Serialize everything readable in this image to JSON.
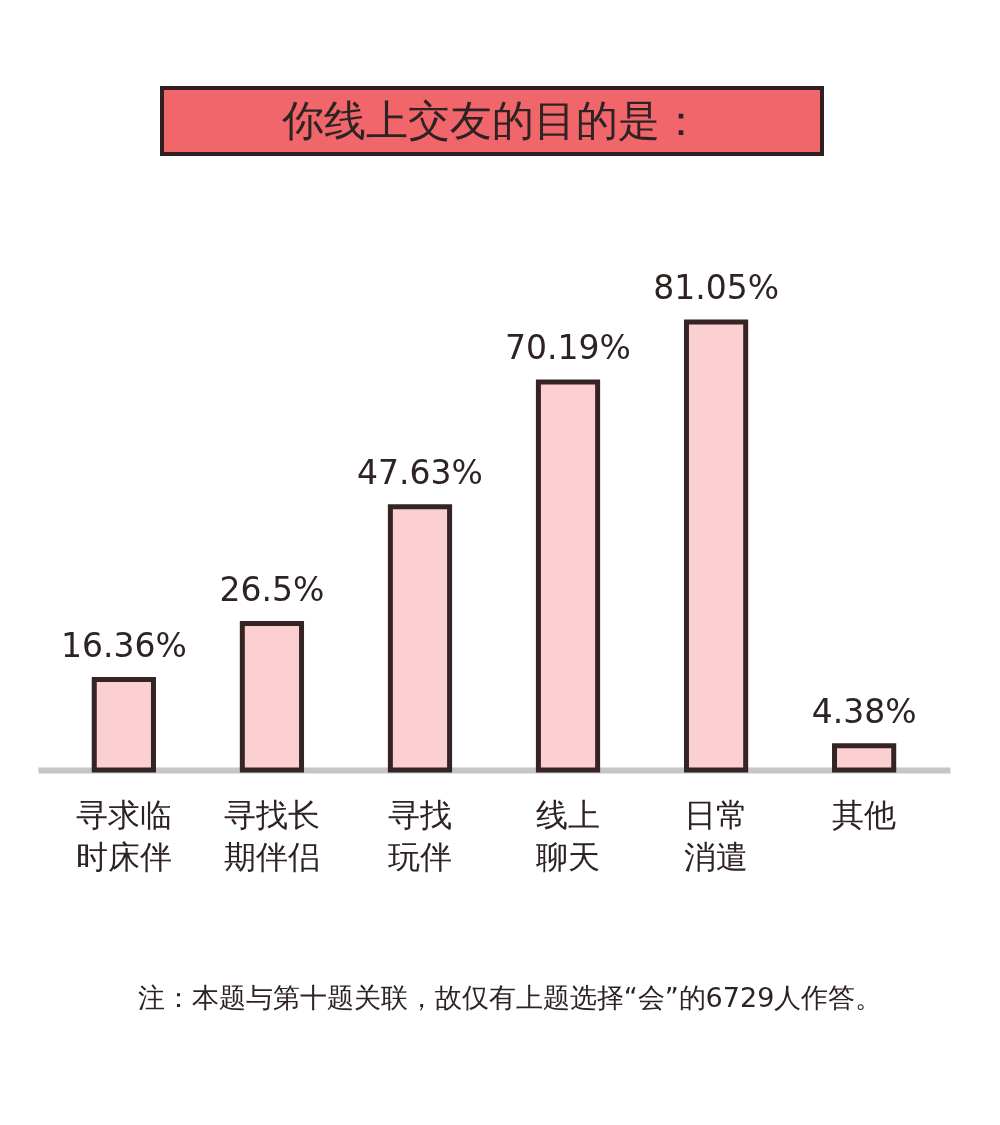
{
  "chart_data": {
    "type": "bar",
    "title": "你线上交友的目的是：",
    "categories": [
      "寻求临时床伴",
      "寻找长期伴侣",
      "寻找玩伴",
      "线上聊天",
      "日常消遣",
      "其他"
    ],
    "values": [
      16.36,
      26.5,
      47.63,
      70.19,
      81.05,
      4.38
    ],
    "value_labels": [
      "16.36%",
      "26.5%",
      "47.63%",
      "70.19%",
      "81.05%",
      "4.38%"
    ],
    "color": "#fccfd2",
    "annotations": [
      "注：本题与第十题关联，故仅有上题选择“会”的6729人作答。"
    ]
  }
}
